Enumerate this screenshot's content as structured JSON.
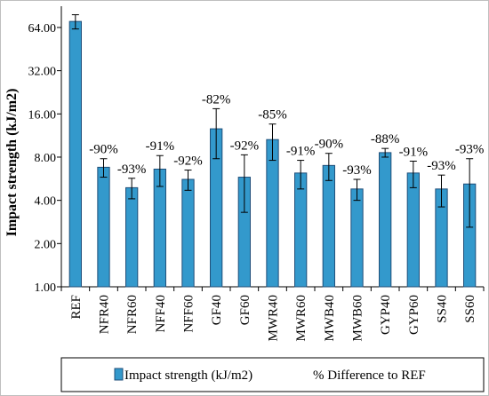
{
  "chart_data": {
    "type": "bar",
    "title": "",
    "xlabel": "",
    "ylabel": "Impact strength (kJ/m2)",
    "yscale": "log2",
    "ylim": [
      1,
      90
    ],
    "yticks": [
      1.0,
      2.0,
      4.0,
      8.0,
      16.0,
      32.0,
      64.0
    ],
    "ytick_labels": [
      "1.00",
      "2.00",
      "4.00",
      "8.00",
      "16.00",
      "32.00",
      "64.00"
    ],
    "grid": false,
    "legend_position": "bottom",
    "categories": [
      "REF",
      "NFR40",
      "NFR60",
      "NFF40",
      "NFF60",
      "GF40",
      "GF60",
      "MWR40",
      "MWR60",
      "MWB40",
      "MWB60",
      "GYP40",
      "GYP60",
      "SS40",
      "SS60"
    ],
    "series": [
      {
        "name": "Impact strength (kJ/m2)",
        "color": "#3399cc",
        "values": [
          70.5,
          6.8,
          4.9,
          6.6,
          5.6,
          12.6,
          5.8,
          10.6,
          6.2,
          7.0,
          4.8,
          8.6,
          6.2,
          4.8,
          5.2
        ],
        "error": [
          8.0,
          1.0,
          0.8,
          1.6,
          0.9,
          4.8,
          2.5,
          3.0,
          1.4,
          1.5,
          0.8,
          0.6,
          1.3,
          1.2,
          2.6
        ]
      }
    ],
    "data_labels": [
      "",
      "-90%",
      "-93%",
      "-91%",
      "-92%",
      "-82%",
      "-92%",
      "-85%",
      "-91%",
      "-90%",
      "-93%",
      "-88%",
      "-91%",
      "-93%",
      "-93%"
    ],
    "legend": [
      {
        "label": "Impact strength (kJ/m2)",
        "kind": "bar",
        "color": "#3399cc"
      },
      {
        "label": "% Difference to REF",
        "kind": "text"
      }
    ]
  }
}
